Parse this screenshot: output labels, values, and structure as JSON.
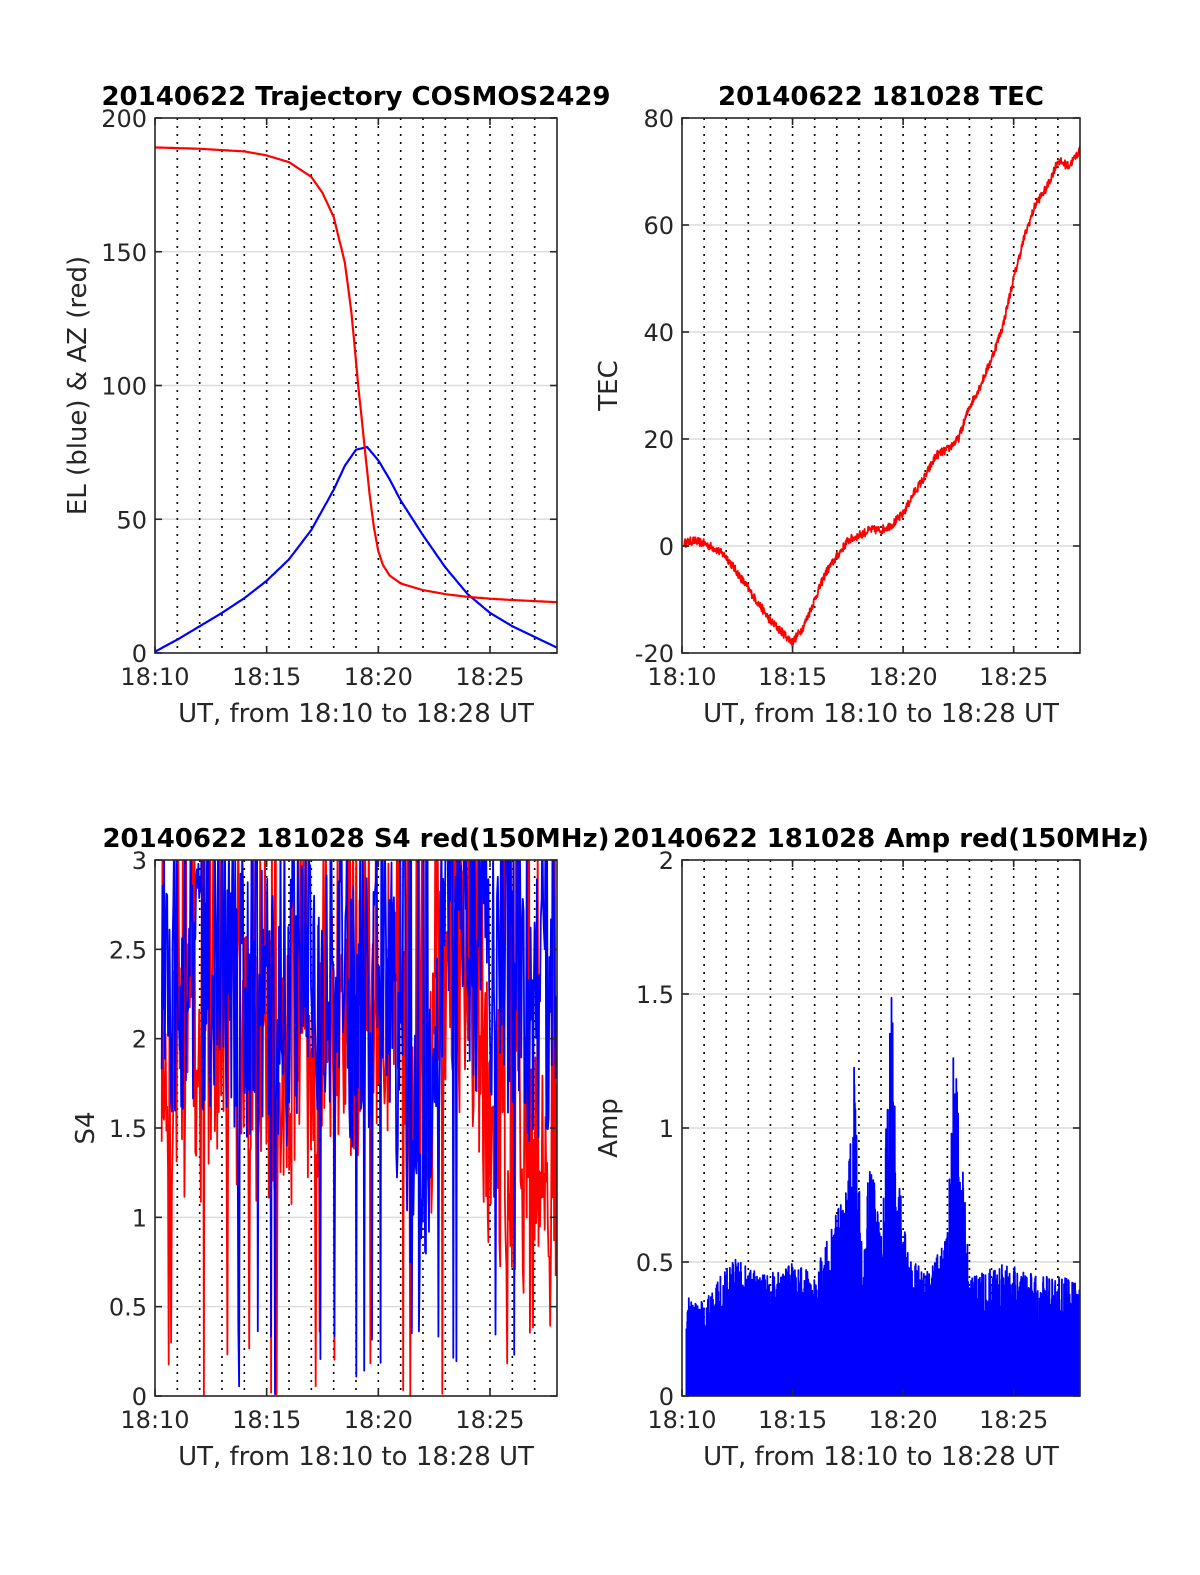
{
  "chart_data": [
    {
      "type": "line",
      "title": "20140622 Trajectory COSMOS2429",
      "xlabel": "UT, from 18:10 to 18:28 UT",
      "ylabel": "EL (blue) & AZ (red)",
      "xlim": [
        0,
        18
      ],
      "ylim": [
        0,
        200
      ],
      "xticks": [
        0,
        5,
        10,
        15
      ],
      "xticklabels": [
        "18:10",
        "18:15",
        "18:20",
        "18:25"
      ],
      "yticks": [
        0,
        50,
        100,
        150,
        200
      ],
      "yticklabels": [
        "0",
        "50",
        "100",
        "150",
        "200"
      ],
      "grid": "minute-dotted-x, major-y",
      "series": [
        {
          "name": "EL",
          "color": "#0000ff",
          "x": [
            0,
            1,
            2,
            3,
            4,
            5,
            6,
            7,
            8,
            8.5,
            9,
            9.5,
            10,
            10.5,
            11,
            12,
            13,
            14,
            15,
            16,
            17,
            18
          ],
          "y": [
            0.5,
            5,
            10,
            15,
            20.5,
            27,
            35,
            46,
            61,
            70,
            76,
            77,
            72,
            65,
            57,
            44,
            32,
            22,
            15,
            10,
            6,
            2
          ]
        },
        {
          "name": "AZ",
          "color": "#ff0000",
          "x": [
            0,
            2,
            4,
            5,
            6,
            7,
            7.5,
            8,
            8.5,
            8.8,
            9.1,
            9.4,
            9.6,
            9.8,
            10,
            10.2,
            10.5,
            11,
            12,
            13,
            14,
            15,
            16,
            18
          ],
          "y": [
            189,
            188.5,
            187.5,
            186,
            183.5,
            178,
            172,
            163,
            146,
            127,
            100,
            76,
            60,
            47,
            38,
            33,
            29,
            26,
            23.5,
            22,
            21,
            20.3,
            19.8,
            19
          ]
        }
      ]
    },
    {
      "type": "line",
      "title": "20140622 181028 TEC",
      "xlabel": "UT, from 18:10 to 18:28 UT",
      "ylabel": "TEC",
      "xlim": [
        0,
        18
      ],
      "ylim": [
        -20,
        80
      ],
      "xticks": [
        0,
        5,
        10,
        15
      ],
      "xticklabels": [
        "18:10",
        "18:15",
        "18:20",
        "18:25"
      ],
      "yticks": [
        -20,
        0,
        20,
        40,
        60,
        80
      ],
      "yticklabels": [
        "-20",
        "0",
        "20",
        "40",
        "60",
        "80"
      ],
      "grid": "minute-dotted-x, major-y",
      "series": [
        {
          "name": "TEC",
          "color": "#ff0000",
          "x": [
            0.1,
            0.5,
            1,
            1.5,
            2,
            2.5,
            3,
            3.5,
            4,
            4.5,
            5,
            5.5,
            6,
            6.5,
            7,
            7.5,
            8,
            8.5,
            9,
            9.5,
            10,
            10.5,
            11,
            11.5,
            12,
            12.5,
            13,
            13.5,
            14,
            14.5,
            15,
            15.5,
            16,
            16.5,
            17,
            17.5,
            18
          ],
          "y": [
            0.5,
            1,
            0.5,
            -0.5,
            -2,
            -5,
            -8,
            -11,
            -14,
            -16,
            -18,
            -15,
            -10,
            -5,
            -2,
            1,
            2,
            3,
            3,
            4,
            6,
            10,
            13,
            17,
            18,
            20,
            26,
            30,
            35,
            41,
            50,
            58,
            64,
            67,
            72,
            71,
            74
          ]
        }
      ]
    },
    {
      "type": "line",
      "title": "20140622 181028 S4 red(150MHz)",
      "xlabel": "UT, from 18:10 to 18:28 UT",
      "ylabel": "S4",
      "xlim": [
        0,
        18
      ],
      "ylim": [
        0,
        3
      ],
      "xticks": [
        0,
        5,
        10,
        15
      ],
      "xticklabels": [
        "18:10",
        "18:15",
        "18:20",
        "18:25"
      ],
      "yticks": [
        0,
        0.5,
        1,
        1.5,
        2,
        2.5,
        3
      ],
      "yticklabels": [
        "0",
        "0.5",
        "1",
        "1.5",
        "2",
        "2.5",
        "3"
      ],
      "grid": "minute-dotted-x, major-y",
      "series": [
        {
          "name": "S4 red",
          "color": "#ff0000",
          "x": [
            1,
            3,
            5,
            7,
            8.5,
            9.5,
            10.5,
            12,
            13,
            14,
            15,
            16,
            17,
            18
          ],
          "y": [
            1.8,
            1.9,
            1.8,
            1.9,
            2.0,
            2.1,
            2.3,
            1.5,
            2.2,
            2.4,
            1.5,
            1.4,
            1.3,
            1.2
          ]
        },
        {
          "name": "S4 blue",
          "color": "#0000ff",
          "x": [
            1,
            3,
            5,
            7,
            8.5,
            9.5,
            10.5,
            12,
            13,
            14,
            15,
            16,
            17,
            18
          ],
          "y": [
            2.3,
            2.3,
            2.2,
            2.2,
            2.1,
            2.2,
            2.3,
            1.0,
            2.6,
            2.5,
            2.4,
            2.3,
            2.2,
            2.3
          ]
        }
      ]
    },
    {
      "type": "line",
      "title": "20140622 181028 Amp red(150MHz)",
      "xlabel": "UT, from 18:10 to 18:28 UT",
      "ylabel": "Amp",
      "xlim": [
        0,
        18
      ],
      "ylim": [
        0,
        2
      ],
      "xticks": [
        0,
        5,
        10,
        15
      ],
      "xticklabels": [
        "18:10",
        "18:15",
        "18:20",
        "18:25"
      ],
      "yticks": [
        0,
        0.5,
        1,
        1.5,
        2
      ],
      "yticklabels": [
        "0",
        "0.5",
        "1",
        "1.5",
        "2"
      ],
      "grid": "minute-dotted-x, major-y",
      "series": [
        {
          "name": "Amp",
          "color": "#0000ff",
          "x": [
            0.2,
            1,
            1.5,
            2.5,
            3.5,
            5,
            6,
            7.5,
            7.8,
            8.2,
            8.5,
            9,
            9.5,
            9.7,
            10.2,
            11,
            12,
            12.3,
            12.6,
            13,
            14,
            15,
            16,
            17,
            18
          ],
          "y": [
            0.37,
            0.35,
            0.42,
            0.53,
            0.45,
            0.5,
            0.46,
            0.8,
            1.26,
            0.46,
            0.95,
            0.6,
            1.56,
            0.9,
            0.55,
            0.45,
            0.6,
            1.35,
            1.0,
            0.45,
            0.48,
            0.5,
            0.45,
            0.45,
            0.42
          ]
        }
      ]
    }
  ]
}
